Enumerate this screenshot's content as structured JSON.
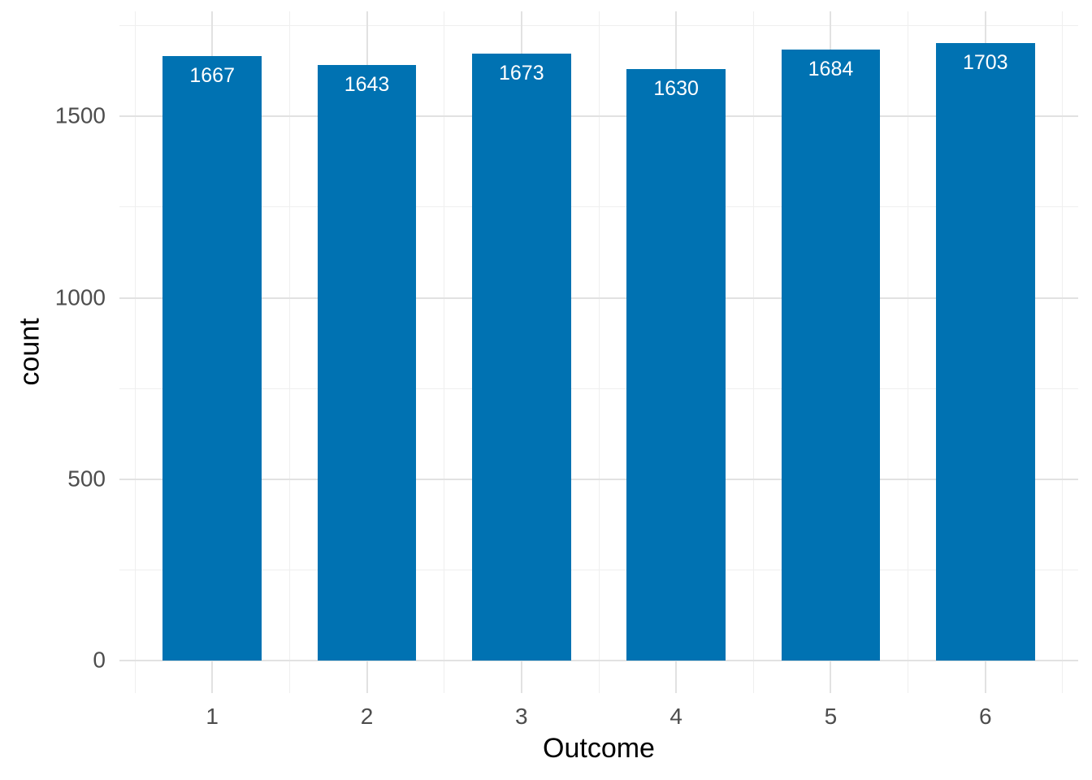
{
  "chart_data": {
    "type": "bar",
    "title": "",
    "xlabel": "Outcome",
    "ylabel": "count",
    "categories": [
      "1",
      "2",
      "3",
      "4",
      "5",
      "6"
    ],
    "values": [
      1667,
      1643,
      1673,
      1630,
      1684,
      1703
    ],
    "bar_labels": [
      "1667",
      "1643",
      "1673",
      "1630",
      "1684",
      "1703"
    ],
    "y_major_ticks": [
      0,
      500,
      1000,
      1500
    ],
    "y_minor_ticks": [
      250,
      750,
      1250,
      1750
    ],
    "ylim": [
      -90,
      1790
    ],
    "xlim": [
      0.4,
      6.6
    ],
    "bar_width_units": 0.64,
    "grid": "major and minor gridlines, no axis lines, no legend",
    "legend_position": "none",
    "colors": {
      "bar_fill": "#0072B2",
      "bar_label_text": "#FFFFFF",
      "tick_label_text": "#4D4D4D",
      "axis_title_text": "#000000",
      "grid_major": "#E2E2E2",
      "grid_minor": "#EFEFEF",
      "background": "#FFFFFF"
    }
  }
}
